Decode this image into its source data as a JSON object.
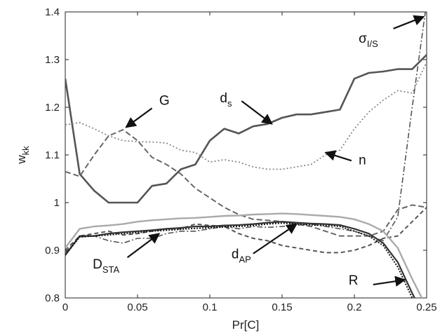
{
  "chart_data": {
    "type": "line",
    "xlabel": "Pr[C]",
    "ylabel": "w",
    "ylabel_sub": "kk",
    "xlim": [
      0,
      0.25
    ],
    "ylim": [
      0.8,
      1.4
    ],
    "xticks": [
      "0",
      "0.05",
      "0.1",
      "0.15",
      "0.2",
      "0.25"
    ],
    "yticks": [
      "0.8",
      "0.9",
      "1",
      "1.1",
      "1.2",
      "1.3",
      "1.4"
    ],
    "grid": false,
    "x": [
      0,
      0.01,
      0.02,
      0.03,
      0.04,
      0.05,
      0.06,
      0.07,
      0.08,
      0.09,
      0.1,
      0.11,
      0.12,
      0.13,
      0.14,
      0.15,
      0.16,
      0.17,
      0.18,
      0.19,
      0.2,
      0.21,
      0.22,
      0.23,
      0.24,
      0.25
    ],
    "series": [
      {
        "id": "ds",
        "color": "#555555",
        "dash": "",
        "width": 2.6,
        "values": [
          1.26,
          1.06,
          1.025,
          1.0,
          1.0,
          1.0,
          1.035,
          1.04,
          1.07,
          1.08,
          1.13,
          1.155,
          1.145,
          1.16,
          1.165,
          1.178,
          1.185,
          1.185,
          1.19,
          1.195,
          1.26,
          1.272,
          1.275,
          1.28,
          1.28,
          1.31
        ]
      },
      {
        "id": "n",
        "color": "#888888",
        "dash": "2,3",
        "width": 1.8,
        "values": [
          1.163,
          1.168,
          1.155,
          1.14,
          1.13,
          1.128,
          1.127,
          1.125,
          1.11,
          1.105,
          1.085,
          1.09,
          1.085,
          1.075,
          1.07,
          1.07,
          1.075,
          1.08,
          1.1,
          1.11,
          1.155,
          1.19,
          1.215,
          1.235,
          1.23,
          1.295
        ]
      },
      {
        "id": "G",
        "color": "#666666",
        "dash": "8,4",
        "width": 2.0,
        "values": [
          1.065,
          1.055,
          1.1,
          1.14,
          1.153,
          1.13,
          1.095,
          1.08,
          1.06,
          1.03,
          1.01,
          0.99,
          0.975,
          0.965,
          0.963,
          0.96,
          0.955,
          0.95,
          0.94,
          0.93,
          0.93,
          0.93,
          0.94,
          0.985,
          0.995,
          0.99
        ]
      },
      {
        "id": "sigma",
        "color": "#555555",
        "dash": "8,3,2,3",
        "width": 1.6,
        "values": [
          0.895,
          0.928,
          0.93,
          0.92,
          0.915,
          0.925,
          0.925,
          0.935,
          0.94,
          0.94,
          0.945,
          0.95,
          0.945,
          0.95,
          0.948,
          0.95,
          0.952,
          0.955,
          0.95,
          0.945,
          0.94,
          0.93,
          0.92,
          0.97,
          1.2,
          1.42
        ]
      },
      {
        "id": "DSTA",
        "color": "#555555",
        "dash": "6,4",
        "width": 2.0,
        "values": [
          0.9,
          0.93,
          0.935,
          0.94,
          0.932,
          0.935,
          0.94,
          0.945,
          0.945,
          0.955,
          0.952,
          0.95,
          0.935,
          0.925,
          0.92,
          0.91,
          0.905,
          0.9,
          0.895,
          0.895,
          0.9,
          0.91,
          0.925,
          0.93,
          0.96,
          0.99
        ]
      },
      {
        "id": "dAP",
        "color": "#333333",
        "dash": "",
        "width": 2.2,
        "values": [
          0.89,
          0.93,
          0.93,
          0.935,
          0.938,
          0.94,
          0.942,
          0.945,
          0.947,
          0.95,
          0.95,
          0.952,
          0.953,
          0.955,
          0.958,
          0.96,
          0.958,
          0.956,
          0.955,
          0.953,
          0.945,
          0.935,
          0.915,
          0.875,
          0.81,
          0.75
        ]
      },
      {
        "id": "R",
        "color": "#111111",
        "dash": "2,2",
        "width": 2.0,
        "values": [
          0.89,
          0.928,
          0.93,
          0.932,
          0.935,
          0.937,
          0.94,
          0.942,
          0.944,
          0.946,
          0.947,
          0.949,
          0.95,
          0.952,
          0.955,
          0.957,
          0.955,
          0.953,
          0.952,
          0.95,
          0.94,
          0.93,
          0.91,
          0.865,
          0.8,
          0.74
        ]
      },
      {
        "id": "light",
        "color": "#aaaaaa",
        "dash": "",
        "width": 2.4,
        "values": [
          0.905,
          0.945,
          0.95,
          0.952,
          0.955,
          0.96,
          0.963,
          0.965,
          0.967,
          0.968,
          0.97,
          0.972,
          0.973,
          0.975,
          0.976,
          0.977,
          0.976,
          0.974,
          0.972,
          0.97,
          0.965,
          0.955,
          0.94,
          0.905,
          0.84,
          0.78
        ]
      }
    ],
    "annotations": [
      {
        "name": "label-G",
        "text": "G",
        "sub": "",
        "x": 0.065,
        "y": 1.205
      },
      {
        "name": "label-ds",
        "text": "d",
        "sub": "s",
        "x": 0.107,
        "y": 1.21
      },
      {
        "name": "label-sigma",
        "text": "σ",
        "sub": "I/S",
        "x": 0.203,
        "y": 1.335
      },
      {
        "name": "label-n",
        "text": "n",
        "sub": "",
        "x": 0.203,
        "y": 1.08
      },
      {
        "name": "label-DSTA",
        "text": "D",
        "sub": "STA",
        "x": 0.019,
        "y": 0.862
      },
      {
        "name": "label-dAP",
        "text": "d",
        "sub": "AP",
        "x": 0.115,
        "y": 0.883
      },
      {
        "name": "label-R",
        "text": "R",
        "sub": "",
        "x": 0.196,
        "y": 0.828
      }
    ],
    "arrows": [
      {
        "name": "arrow-G",
        "from": [
          0.06,
          1.198
        ],
        "to": [
          0.042,
          1.158
        ]
      },
      {
        "name": "arrow-ds",
        "from": [
          0.122,
          1.213
        ],
        "to": [
          0.143,
          1.165
        ]
      },
      {
        "name": "arrow-sigma",
        "from": [
          0.227,
          1.365
        ],
        "to": [
          0.248,
          1.39
        ]
      },
      {
        "name": "arrow-n",
        "from": [
          0.198,
          1.088
        ],
        "to": [
          0.18,
          1.105
        ]
      },
      {
        "name": "arrow-DSTA",
        "from": [
          0.043,
          0.885
        ],
        "to": [
          0.065,
          0.935
        ]
      },
      {
        "name": "arrow-dAP",
        "from": [
          0.13,
          0.893
        ],
        "to": [
          0.16,
          0.955
        ]
      },
      {
        "name": "arrow-R",
        "from": [
          0.213,
          0.828
        ],
        "to": [
          0.235,
          0.838
        ]
      }
    ]
  }
}
